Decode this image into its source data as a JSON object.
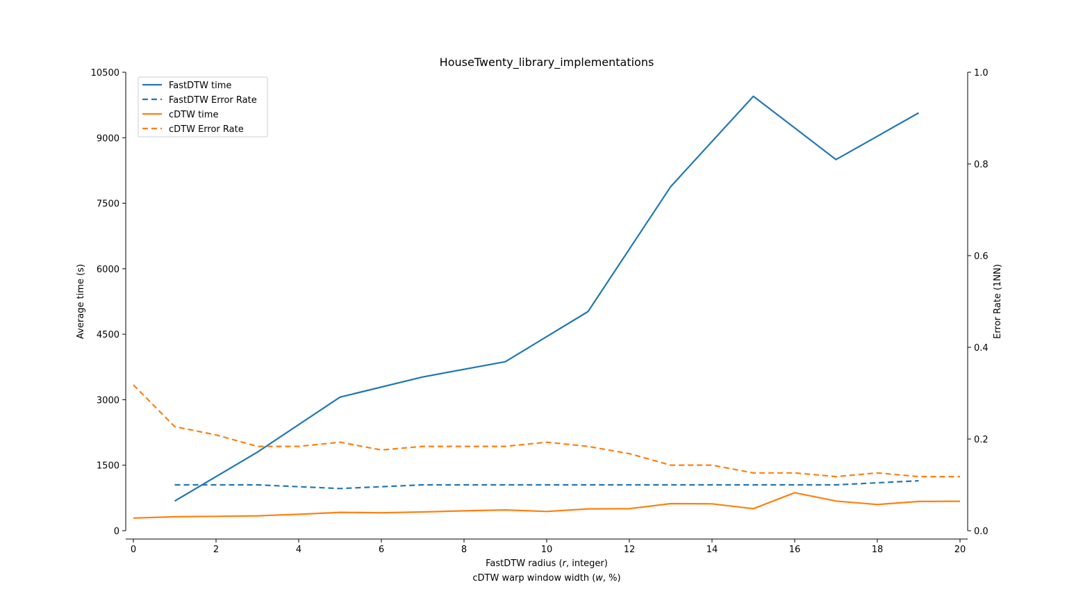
{
  "chart_data": {
    "type": "line",
    "title": "HouseTwenty_library_implementations",
    "xlabel_line1_prefix": "FastDTW radius (",
    "xlabel_line1_var": "r",
    "xlabel_line1_suffix": ", integer)",
    "xlabel_line2_prefix": "cDTW warp window width (",
    "xlabel_line2_var": "w",
    "xlabel_line2_suffix": ", %)",
    "ylabel_left": "Average time (s)",
    "ylabel_right": "Error Rate (1NN)",
    "xlim": [
      0,
      20
    ],
    "ylim_left": [
      0,
      10500
    ],
    "ylim_right": [
      0.0,
      1.0
    ],
    "xticks": [
      "0",
      "2",
      "4",
      "6",
      "8",
      "10",
      "12",
      "14",
      "16",
      "18",
      "20"
    ],
    "yticks_left": [
      "0",
      "1500",
      "3000",
      "4500",
      "6000",
      "7500",
      "9000",
      "10500"
    ],
    "yticks_right": [
      "0.0",
      "0.2",
      "0.4",
      "0.6",
      "0.8",
      "1.0"
    ],
    "legend_position": "top-left",
    "series": [
      {
        "name": "FastDTW time",
        "axis": "left",
        "style": "solid",
        "color": "#1f77b4",
        "x": [
          1,
          3,
          5,
          7,
          9,
          11,
          13,
          15,
          17,
          19
        ],
        "y": [
          680,
          1800,
          3060,
          3520,
          3870,
          5020,
          7880,
          9950,
          8500,
          9570
        ]
      },
      {
        "name": "FastDTW Error Rate",
        "axis": "right",
        "style": "dashed",
        "color": "#1f77b4",
        "x": [
          1,
          3,
          5,
          7,
          9,
          11,
          13,
          15,
          17,
          19
        ],
        "y": [
          0.1,
          0.1,
          0.092,
          0.1,
          0.1,
          0.1,
          0.1,
          0.1,
          0.1,
          0.109
        ]
      },
      {
        "name": "cDTW time",
        "axis": "left",
        "style": "solid",
        "color": "#ff7f0e",
        "x": [
          0,
          1,
          2,
          3,
          4,
          5,
          6,
          7,
          8,
          9,
          10,
          11,
          12,
          13,
          14,
          15,
          16,
          17,
          18,
          19,
          20
        ],
        "y": [
          290,
          320,
          330,
          340,
          375,
          420,
          410,
          430,
          455,
          475,
          440,
          500,
          505,
          620,
          615,
          505,
          870,
          680,
          600,
          670,
          675
        ]
      },
      {
        "name": "cDTW Error Rate",
        "axis": "right",
        "style": "dashed",
        "color": "#ff7f0e",
        "x": [
          0,
          1,
          2,
          3,
          4,
          5,
          6,
          7,
          8,
          9,
          10,
          11,
          12,
          13,
          14,
          15,
          16,
          17,
          18,
          19,
          20
        ],
        "y": [
          0.318,
          0.227,
          0.209,
          0.184,
          0.184,
          0.193,
          0.176,
          0.184,
          0.184,
          0.184,
          0.193,
          0.184,
          0.168,
          0.143,
          0.143,
          0.126,
          0.126,
          0.118,
          0.126,
          0.118,
          0.118
        ]
      }
    ]
  }
}
